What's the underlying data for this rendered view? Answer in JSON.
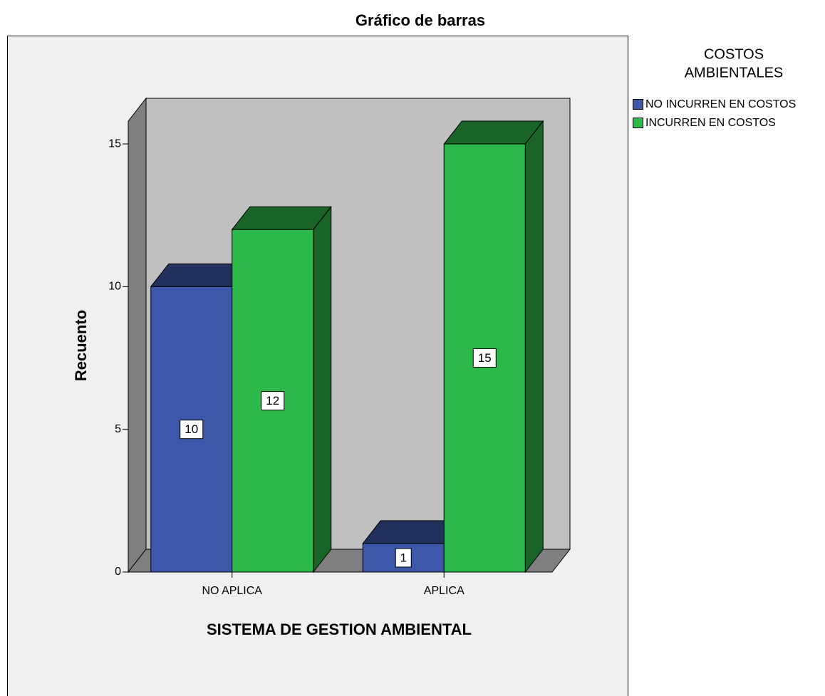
{
  "chart_data": {
    "type": "bar3d",
    "title": "Gráfico de barras",
    "x_label": "SISTEMA DE GESTION AMBIENTAL",
    "y_label": "Recuento",
    "legend_title": [
      "COSTOS",
      "AMBIENTALES"
    ],
    "categories": [
      "NO APLICA",
      "APLICA"
    ],
    "series": [
      {
        "name": "NO INCURREN EN COSTOS",
        "color": "#3d57ab",
        "values": [
          10,
          1
        ]
      },
      {
        "name": "INCURREN EN COSTOS",
        "color": "#2db84a",
        "values": [
          12,
          15
        ]
      }
    ],
    "ylim": [
      0,
      15.8
    ],
    "yticks": [
      0,
      5,
      10,
      15
    ],
    "legend": "right"
  }
}
